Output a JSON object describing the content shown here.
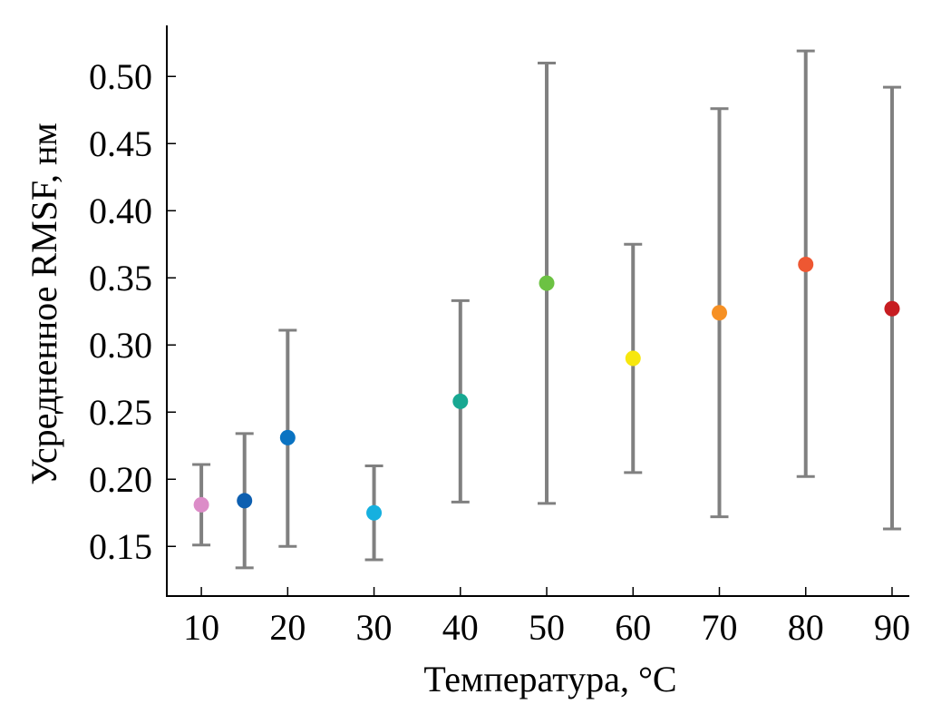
{
  "chart_data": {
    "type": "scatter",
    "title": "",
    "xlabel": "Температура, °C",
    "ylabel": "Усредненное RMSF, нм",
    "x_ticks": [
      10,
      20,
      30,
      40,
      50,
      60,
      70,
      80,
      90
    ],
    "x_tick_labels": [
      "10",
      "20",
      "30",
      "40",
      "50",
      "60",
      "70",
      "80",
      "90"
    ],
    "y_ticks": [
      0.15,
      0.2,
      0.25,
      0.3,
      0.35,
      0.4,
      0.45,
      0.5
    ],
    "y_tick_labels": [
      "0.15",
      "0.20",
      "0.25",
      "0.30",
      "0.35",
      "0.40",
      "0.45",
      "0.50"
    ],
    "xlim": [
      6,
      92
    ],
    "ylim": [
      0.113,
      0.538
    ],
    "grid": false,
    "error_bar_color": "#808080",
    "points": [
      {
        "x": 10,
        "y": 0.181,
        "low": 0.151,
        "high": 0.211,
        "color": "#DC8CC8"
      },
      {
        "x": 15,
        "y": 0.184,
        "low": 0.134,
        "high": 0.234,
        "color": "#0D5FB0"
      },
      {
        "x": 20,
        "y": 0.231,
        "low": 0.15,
        "high": 0.311,
        "color": "#0A73C2"
      },
      {
        "x": 30,
        "y": 0.175,
        "low": 0.14,
        "high": 0.21,
        "color": "#16B0DF"
      },
      {
        "x": 40,
        "y": 0.258,
        "low": 0.183,
        "high": 0.333,
        "color": "#18A892"
      },
      {
        "x": 50,
        "y": 0.346,
        "low": 0.182,
        "high": 0.51,
        "color": "#6CC243"
      },
      {
        "x": 60,
        "y": 0.29,
        "low": 0.205,
        "high": 0.375,
        "color": "#F7E70E"
      },
      {
        "x": 70,
        "y": 0.324,
        "low": 0.172,
        "high": 0.476,
        "color": "#F69024"
      },
      {
        "x": 80,
        "y": 0.36,
        "low": 0.202,
        "high": 0.519,
        "color": "#EE5732"
      },
      {
        "x": 90,
        "y": 0.327,
        "low": 0.163,
        "high": 0.492,
        "color": "#C71D21"
      }
    ]
  }
}
